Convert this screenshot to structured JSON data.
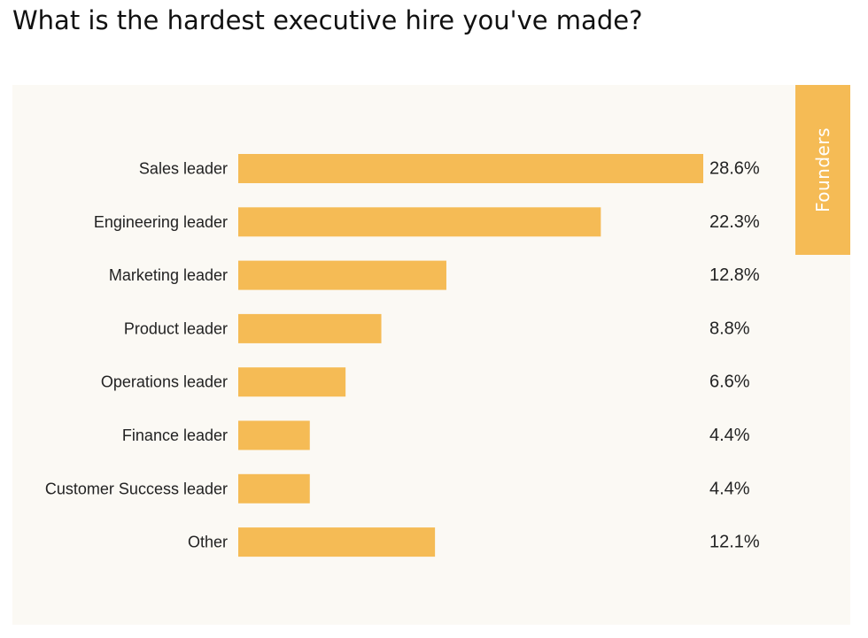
{
  "title": "What is the hardest executive hire you've made?",
  "tab_label": "Founders",
  "colors": {
    "bar": "#f5bb55",
    "panel_background": "#fbf9f4",
    "tab": "#f5bb55"
  },
  "chart_data": {
    "type": "bar",
    "orientation": "horizontal",
    "categories": [
      "Sales leader",
      "Engineering leader",
      "Marketing leader",
      "Product leader",
      "Operations leader",
      "Finance leader",
      "Customer Success leader",
      "Other"
    ],
    "values": [
      28.6,
      22.3,
      12.8,
      8.8,
      6.6,
      4.4,
      4.4,
      12.1
    ],
    "value_labels": [
      "28.6%",
      "22.3%",
      "12.8%",
      "8.8%",
      "6.6%",
      "4.4%",
      "4.4%",
      "12.1%"
    ],
    "unit": "%",
    "grid": false,
    "legend": "none"
  }
}
